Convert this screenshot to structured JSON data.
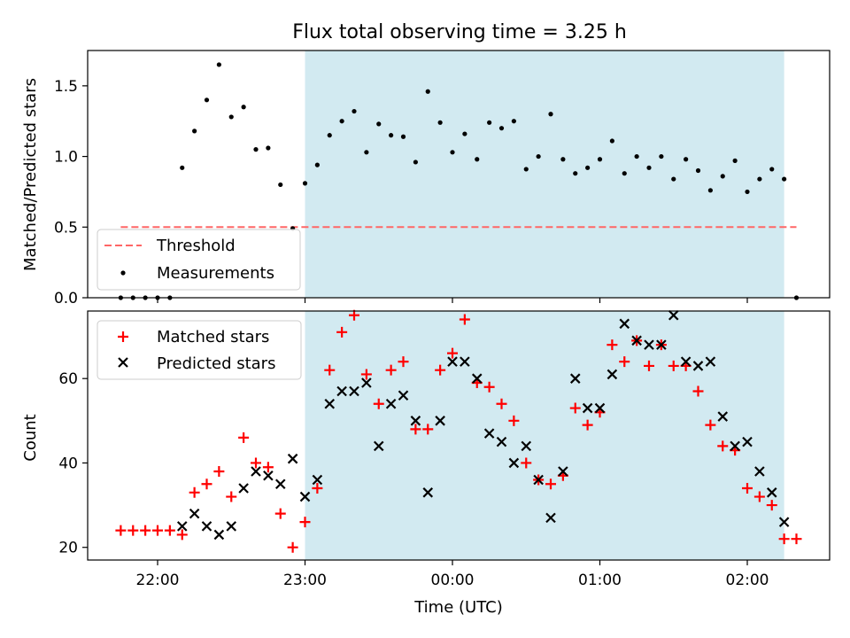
{
  "title": "Flux total observing time = 3.25 h",
  "colors": {
    "shade": "#add8e6",
    "threshold": "#ff6666",
    "measurement": "#000000",
    "matched": "#ff0000",
    "predicted": "#000000"
  },
  "chart_data": [
    {
      "type": "scatter",
      "ylabel": "Matched/Predicted stars",
      "ylim": [
        0.0,
        1.75
      ],
      "yticks": [
        "0.0",
        "0.5",
        "1.0",
        "1.5"
      ],
      "shaded_interval": [
        "23:00",
        "02:15"
      ],
      "legend_placement": "lower-left",
      "threshold": {
        "name": "Threshold",
        "value": 0.5,
        "x_range": [
          "21:45",
          "02:20"
        ]
      },
      "series": [
        {
          "name": "Measurements",
          "x": [
            "21:45",
            "21:50",
            "21:55",
            "22:00",
            "22:05",
            "22:10",
            "22:15",
            "22:20",
            "22:25",
            "22:30",
            "22:35",
            "22:40",
            "22:45",
            "22:50",
            "22:55",
            "23:00",
            "23:05",
            "23:10",
            "23:15",
            "23:20",
            "23:25",
            "23:30",
            "23:35",
            "23:40",
            "23:45",
            "23:50",
            "23:55",
            "00:00",
            "00:05",
            "00:10",
            "00:15",
            "00:20",
            "00:25",
            "00:30",
            "00:35",
            "00:40",
            "00:45",
            "00:50",
            "00:55",
            "01:00",
            "01:05",
            "01:10",
            "01:15",
            "01:20",
            "01:25",
            "01:30",
            "01:35",
            "01:40",
            "01:45",
            "01:50",
            "01:55",
            "02:00",
            "02:05",
            "02:10",
            "02:15",
            "02:20"
          ],
          "y": [
            0.0,
            0.0,
            0.0,
            0.0,
            0.0,
            0.92,
            1.18,
            1.4,
            1.65,
            1.28,
            1.35,
            1.05,
            1.06,
            0.8,
            0.49,
            0.81,
            0.94,
            1.15,
            1.25,
            1.32,
            1.03,
            1.23,
            1.15,
            1.14,
            0.96,
            1.46,
            1.24,
            1.03,
            1.16,
            0.98,
            1.24,
            1.2,
            1.25,
            0.91,
            1.0,
            1.3,
            0.98,
            0.88,
            0.92,
            0.98,
            1.11,
            0.88,
            1.0,
            0.92,
            1.0,
            0.84,
            0.98,
            0.9,
            0.76,
            0.86,
            0.97,
            0.75,
            0.84,
            0.91,
            0.84,
            0.0
          ]
        }
      ]
    },
    {
      "type": "scatter",
      "xlabel": "Time (UTC)",
      "ylabel": "Count",
      "ylim": [
        17,
        76
      ],
      "yticks": [
        "20",
        "40",
        "60"
      ],
      "xtick_labels": [
        "22:00",
        "23:00",
        "00:00",
        "01:00",
        "02:00"
      ],
      "shaded_interval": [
        "23:00",
        "02:15"
      ],
      "legend_placement": "upper-left",
      "series": [
        {
          "name": "Matched stars",
          "x": [
            "21:45",
            "21:50",
            "21:55",
            "22:00",
            "22:05",
            "22:10",
            "22:15",
            "22:20",
            "22:25",
            "22:30",
            "22:35",
            "22:40",
            "22:45",
            "22:50",
            "22:55",
            "23:00",
            "23:05",
            "23:10",
            "23:15",
            "23:20",
            "23:25",
            "23:30",
            "23:35",
            "23:40",
            "23:45",
            "23:50",
            "23:55",
            "00:00",
            "00:05",
            "00:10",
            "00:15",
            "00:20",
            "00:25",
            "00:30",
            "00:35",
            "00:40",
            "00:45",
            "00:50",
            "00:55",
            "01:00",
            "01:05",
            "01:10",
            "01:15",
            "01:20",
            "01:25",
            "01:30",
            "01:35",
            "01:40",
            "01:45",
            "01:50",
            "01:55",
            "02:00",
            "02:05",
            "02:10",
            "02:15",
            "02:20"
          ],
          "y": [
            24,
            24,
            24,
            24,
            24,
            23,
            33,
            35,
            38,
            32,
            46,
            40,
            39,
            28,
            20,
            26,
            34,
            62,
            71,
            75,
            61,
            54,
            62,
            64,
            48,
            48,
            62,
            66,
            74,
            59,
            58,
            54,
            50,
            40,
            36,
            35,
            37,
            53,
            49,
            52,
            68,
            64,
            69,
            63,
            68,
            63,
            63,
            57,
            49,
            44,
            43,
            34,
            32,
            30,
            22,
            22
          ]
        },
        {
          "name": "Predicted stars",
          "x": [
            "22:10",
            "22:15",
            "22:20",
            "22:25",
            "22:30",
            "22:35",
            "22:40",
            "22:45",
            "22:50",
            "22:55",
            "23:00",
            "23:05",
            "23:10",
            "23:15",
            "23:20",
            "23:25",
            "23:30",
            "23:35",
            "23:40",
            "23:45",
            "23:50",
            "23:55",
            "00:00",
            "00:05",
            "00:10",
            "00:15",
            "00:20",
            "00:25",
            "00:30",
            "00:35",
            "00:40",
            "00:45",
            "00:50",
            "00:55",
            "01:00",
            "01:05",
            "01:10",
            "01:15",
            "01:20",
            "01:25",
            "01:30",
            "01:35",
            "01:40",
            "01:45",
            "01:50",
            "01:55",
            "02:00",
            "02:05",
            "02:10",
            "02:15"
          ],
          "y": [
            25,
            28,
            25,
            23,
            25,
            34,
            38,
            37,
            35,
            41,
            32,
            36,
            54,
            57,
            57,
            59,
            44,
            54,
            56,
            50,
            33,
            50,
            64,
            64,
            60,
            47,
            45,
            40,
            44,
            36,
            27,
            38,
            60,
            53,
            53,
            61,
            73,
            69,
            68,
            68,
            75,
            64,
            63,
            64,
            51,
            44,
            45,
            38,
            33,
            26
          ]
        }
      ]
    }
  ]
}
